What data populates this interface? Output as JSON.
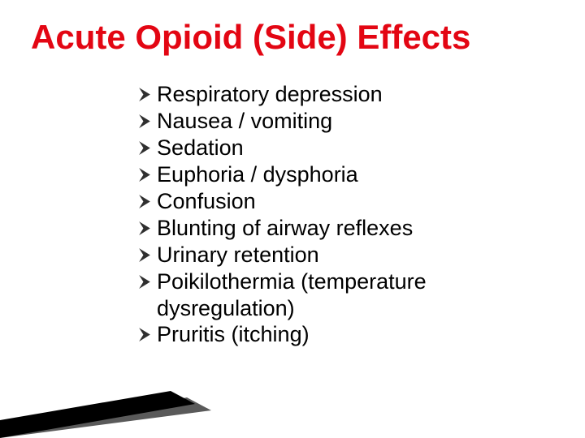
{
  "slide": {
    "title": "Acute Opioid (Side) Effects",
    "title_color": "#e30613",
    "title_fontsize": 42,
    "title_fontweight": "bold",
    "background_color": "#ffffff",
    "bullet_color": "#2f2f2f",
    "bullet_fontsize": 27,
    "text_fontsize": 27,
    "text_color": "#000000",
    "line_height": 1.22,
    "items": [
      "Respiratory depression",
      "Nausea / vomiting",
      "Sedation",
      "Euphoria / dysphoria",
      "Confusion",
      "Blunting of airway reflexes",
      "Urinary retention",
      "Poikilothermia (temperature dysregulation)",
      "Pruritis (itching)"
    ],
    "decor": {
      "shape1_color": "#000000",
      "shape2_color": "#5a5a5a"
    }
  }
}
